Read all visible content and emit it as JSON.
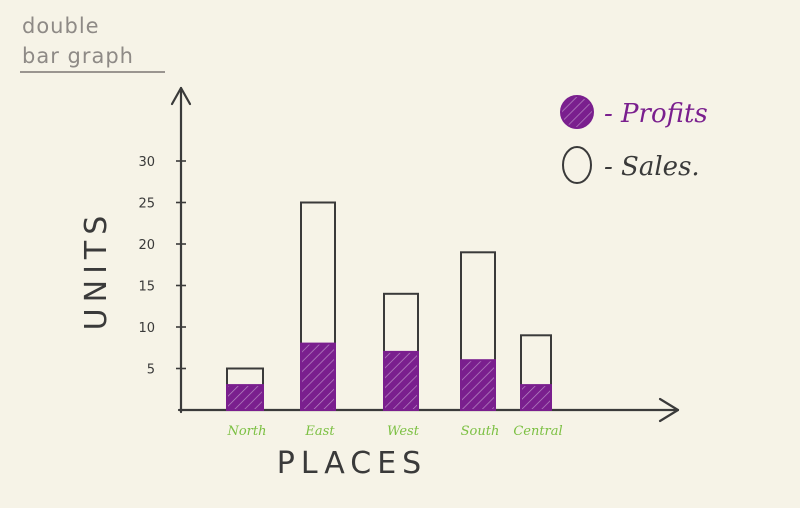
{
  "heading": {
    "line1": "double",
    "line2": "bar graph"
  },
  "chart_data": {
    "type": "bar",
    "title": "double bar graph",
    "xlabel": "PLACES",
    "ylabel": "UNITS",
    "categories": [
      "North",
      "East",
      "West",
      "South",
      "Central"
    ],
    "series": [
      {
        "name": "Profits",
        "values": [
          3,
          8,
          7,
          6,
          3
        ],
        "style": "filled-hatched"
      },
      {
        "name": "Sales",
        "values": [
          5,
          25,
          14,
          19,
          9
        ],
        "style": "outline"
      }
    ],
    "y_ticks": [
      5,
      10,
      15,
      20,
      25,
      30
    ],
    "ylim": [
      0,
      36
    ],
    "grid": false,
    "legend": {
      "position": "top-right",
      "entries": [
        "- Profits",
        "- Sales."
      ]
    },
    "colors": {
      "profits": "#7a1f8e",
      "sales_outline": "#3a3a3a",
      "category_label": "#7cc043",
      "axis": "#3a3a3a",
      "heading": "#8e8a86"
    }
  }
}
